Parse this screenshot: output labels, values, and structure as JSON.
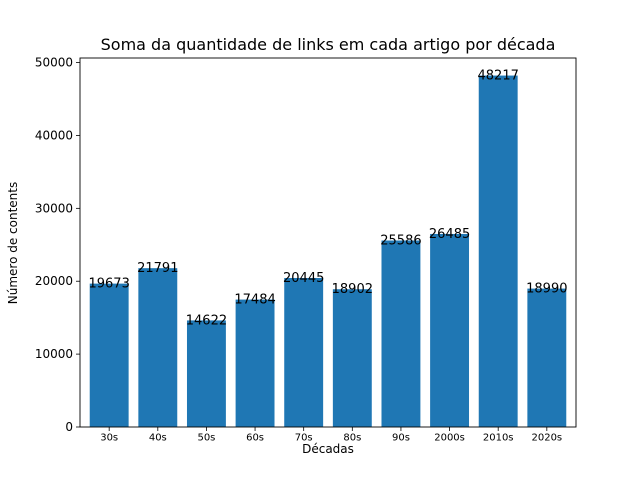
{
  "chart_data": {
    "type": "bar",
    "title": "Soma da quantidade de links em cada artigo por década",
    "xlabel": "Décadas",
    "ylabel": "Número de contents",
    "categories": [
      "30s",
      "40s",
      "50s",
      "60s",
      "70s",
      "80s",
      "90s",
      "2000s",
      "2010s",
      "2020s"
    ],
    "values": [
      19673,
      21791,
      14622,
      17484,
      20445,
      18902,
      25586,
      26485,
      48217,
      18990
    ],
    "ylim": [
      0,
      50626
    ],
    "yticks": [
      0,
      10000,
      20000,
      30000,
      40000,
      50000
    ],
    "bar_color": "#1f77b4",
    "grid": false,
    "legend": "none"
  }
}
